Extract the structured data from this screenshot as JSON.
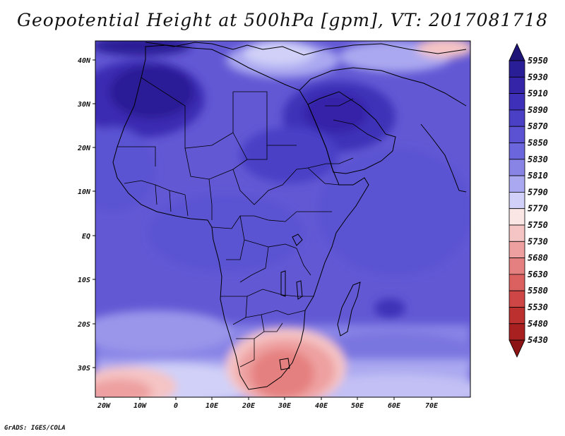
{
  "title": "Geopotential Height at 500hPa [gpm], VT: 2017081718",
  "credit": "GrADS: IGES/COLA",
  "map": {
    "lon_labels": [
      "20W",
      "10W",
      "0",
      "10E",
      "20E",
      "30E",
      "40E",
      "50E",
      "60E",
      "70E"
    ],
    "lat_labels": [
      "40N",
      "30N",
      "20N",
      "10N",
      "EQ",
      "10S",
      "20S",
      "30S"
    ]
  },
  "colorbar": {
    "levels": [
      "5950",
      "5930",
      "5910",
      "5890",
      "5870",
      "5850",
      "5830",
      "5810",
      "5790",
      "5770",
      "5750",
      "5730",
      "5680",
      "5630",
      "5580",
      "5530",
      "5480",
      "5430"
    ],
    "colors": [
      "#1e1478",
      "#2a1e96",
      "#3424a8",
      "#3e30b8",
      "#4a40c6",
      "#5a52d2",
      "#6c66dc",
      "#8884e6",
      "#aaa8f0",
      "#d0d0f8",
      "#fbe6e6",
      "#f5c4c4",
      "#eea0a0",
      "#e58080",
      "#db6060",
      "#ce4646",
      "#bc3030",
      "#a82020",
      "#8c1414"
    ]
  }
}
